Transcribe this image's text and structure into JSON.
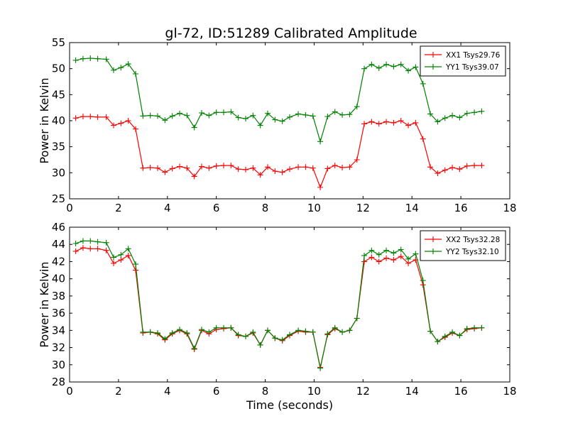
{
  "figure": {
    "title": "gl-72, ID:51289 Calibrated Amplitude"
  },
  "chart_data": [
    {
      "type": "line",
      "title": "gl-72, ID:51289 Calibrated Amplitude",
      "xlabel": "",
      "ylabel": "Power in Kelvin",
      "xlim": [
        0,
        18
      ],
      "ylim": [
        25,
        55
      ],
      "xticks": [
        "0",
        "2",
        "4",
        "6",
        "8",
        "10",
        "12",
        "14",
        "16",
        "18"
      ],
      "yticks": [
        "25",
        "30",
        "35",
        "40",
        "45",
        "50",
        "55"
      ],
      "legend_position": "top-right",
      "grid": false,
      "x": [
        0.25,
        0.55,
        0.85,
        1.15,
        1.5,
        1.8,
        2.1,
        2.4,
        2.7,
        3.0,
        3.3,
        3.6,
        3.9,
        4.2,
        4.5,
        4.8,
        5.1,
        5.4,
        5.7,
        6.0,
        6.3,
        6.6,
        6.9,
        7.2,
        7.5,
        7.8,
        8.1,
        8.4,
        8.7,
        9.0,
        9.35,
        9.65,
        9.95,
        10.25,
        10.55,
        10.85,
        11.15,
        11.45,
        11.75,
        12.05,
        12.35,
        12.65,
        12.95,
        13.25,
        13.55,
        13.85,
        14.15,
        14.45,
        14.75,
        15.05,
        15.35,
        15.65,
        15.95,
        16.25,
        16.55,
        16.85
      ],
      "series": [
        {
          "name": "XX1 Tsys29.76",
          "color": "#ff0000",
          "values": [
            40.5,
            40.8,
            40.8,
            40.7,
            40.7,
            39.1,
            39.5,
            40.0,
            38.4,
            30.9,
            31.0,
            30.9,
            30.1,
            30.8,
            31.2,
            30.9,
            29.3,
            31.2,
            30.9,
            31.3,
            31.4,
            31.4,
            30.7,
            30.6,
            30.9,
            29.6,
            31.1,
            30.3,
            30.1,
            30.7,
            31.1,
            31.1,
            30.9,
            27.2,
            30.8,
            31.4,
            31.0,
            31.1,
            32.5,
            39.4,
            39.8,
            39.4,
            39.8,
            39.6,
            40.0,
            39.1,
            39.6,
            36.5,
            31.1,
            29.9,
            30.5,
            31.0,
            30.7,
            31.3,
            31.4,
            31.4
          ]
        },
        {
          "name": "YY1 Tsys39.07",
          "color": "#008000",
          "values": [
            51.6,
            51.9,
            52.0,
            51.9,
            51.8,
            49.7,
            50.2,
            50.9,
            49.0,
            40.9,
            41.0,
            40.9,
            40.1,
            40.9,
            41.4,
            41.0,
            38.7,
            41.5,
            41.0,
            41.6,
            41.6,
            41.7,
            40.6,
            40.4,
            41.0,
            39.1,
            41.4,
            40.2,
            39.9,
            40.7,
            41.3,
            41.1,
            40.9,
            36.0,
            40.8,
            41.7,
            41.1,
            41.2,
            42.7,
            50.0,
            50.8,
            50.1,
            50.8,
            50.4,
            50.8,
            49.6,
            50.3,
            47.1,
            41.3,
            39.8,
            40.5,
            41.0,
            40.6,
            41.4,
            41.6,
            41.8
          ]
        }
      ]
    },
    {
      "type": "line",
      "title": "",
      "xlabel": "Time (seconds)",
      "ylabel": "Power in Kelvin",
      "xlim": [
        0,
        18
      ],
      "ylim": [
        28,
        46
      ],
      "xticks": [
        "0",
        "2",
        "4",
        "6",
        "8",
        "10",
        "12",
        "14",
        "16",
        "18"
      ],
      "yticks": [
        "28",
        "30",
        "32",
        "34",
        "36",
        "38",
        "40",
        "42",
        "44",
        "46"
      ],
      "legend_position": "top-right",
      "grid": false,
      "x": [
        0.25,
        0.55,
        0.85,
        1.15,
        1.5,
        1.8,
        2.1,
        2.4,
        2.7,
        3.0,
        3.3,
        3.6,
        3.9,
        4.2,
        4.5,
        4.8,
        5.1,
        5.4,
        5.7,
        6.0,
        6.3,
        6.6,
        6.9,
        7.2,
        7.5,
        7.8,
        8.1,
        8.4,
        8.7,
        9.0,
        9.35,
        9.65,
        9.95,
        10.25,
        10.55,
        10.85,
        11.15,
        11.45,
        11.75,
        12.05,
        12.35,
        12.65,
        12.95,
        13.25,
        13.55,
        13.85,
        14.15,
        14.45,
        14.75,
        15.05,
        15.35,
        15.65,
        15.95,
        16.25,
        16.55,
        16.85
      ],
      "series": [
        {
          "name": "XX2 Tsys32.28",
          "color": "#ff0000",
          "values": [
            43.2,
            43.6,
            43.5,
            43.5,
            43.3,
            41.8,
            42.2,
            42.7,
            41.0,
            33.7,
            33.8,
            33.6,
            32.9,
            33.6,
            34.0,
            33.6,
            31.8,
            34.0,
            33.6,
            34.1,
            34.2,
            34.3,
            33.4,
            33.3,
            33.7,
            32.3,
            34.0,
            33.1,
            32.8,
            33.4,
            33.9,
            33.8,
            33.8,
            29.7,
            33.5,
            34.2,
            33.8,
            34.0,
            35.4,
            42.0,
            42.5,
            42.0,
            42.4,
            42.2,
            42.6,
            41.8,
            42.2,
            39.3,
            33.9,
            32.7,
            33.2,
            33.7,
            33.4,
            34.1,
            34.2,
            34.3
          ]
        },
        {
          "name": "YY2 Tsys32.10",
          "color": "#008000",
          "values": [
            44.1,
            44.4,
            44.4,
            44.3,
            44.2,
            42.5,
            42.8,
            43.5,
            41.7,
            33.8,
            33.8,
            33.7,
            33.0,
            33.7,
            34.1,
            33.7,
            31.9,
            34.1,
            33.8,
            34.3,
            34.3,
            34.3,
            33.5,
            33.3,
            33.8,
            32.3,
            34.0,
            33.1,
            32.9,
            33.5,
            34.0,
            33.9,
            33.8,
            29.6,
            33.6,
            34.3,
            33.8,
            34.0,
            35.4,
            42.7,
            43.3,
            42.8,
            43.3,
            43.0,
            43.4,
            42.3,
            42.9,
            39.8,
            33.9,
            32.7,
            33.3,
            33.8,
            33.4,
            34.2,
            34.3,
            34.3
          ]
        }
      ]
    }
  ]
}
